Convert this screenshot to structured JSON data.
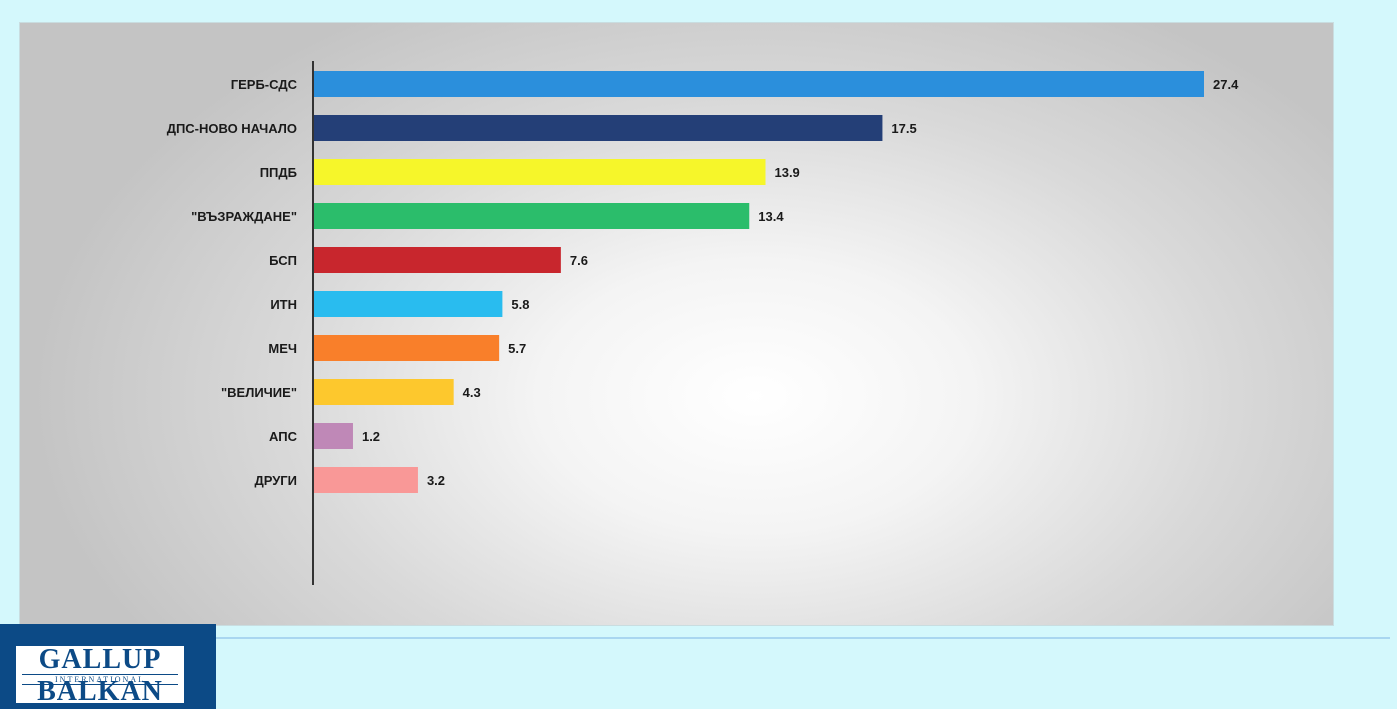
{
  "chart_data": {
    "type": "bar",
    "orientation": "horizontal",
    "categories": [
      "ГЕРБ-СДС",
      "ДПС-НОВО НАЧАЛО",
      "ППДБ",
      "\"ВЪЗРАЖДАНЕ\"",
      "БСП",
      "ИТН",
      "МЕЧ",
      "\"ВЕЛИЧИЕ\"",
      "АПС",
      "ДРУГИ"
    ],
    "values": [
      27.4,
      17.5,
      13.9,
      13.4,
      7.6,
      5.8,
      5.7,
      4.3,
      1.2,
      3.2
    ],
    "value_labels": [
      "27.4",
      "17.5",
      "13.9",
      "13.4",
      "7.6",
      "5.8",
      "5.7",
      "4.3",
      "1.2",
      "3.2"
    ],
    "colors": [
      "#2b8fdc",
      "#243f77",
      "#f6f62a",
      "#2bbd6b",
      "#c8262d",
      "#29bcef",
      "#f97f2a",
      "#fdc82d",
      "#bf88b7",
      "#f99897"
    ],
    "xlim": [
      0,
      27.4
    ],
    "grid": false,
    "legend": false,
    "title": "",
    "xlabel": "",
    "ylabel": ""
  },
  "logo": {
    "line1": "GALLUP",
    "line2": "INTERNATIONAL",
    "line3": "BALKAN",
    "color": "#0c4a86"
  }
}
